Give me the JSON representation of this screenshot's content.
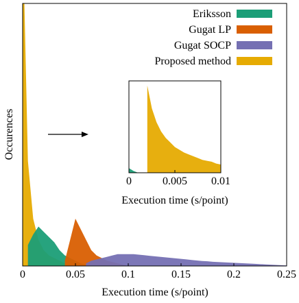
{
  "chart_data": [
    {
      "type": "area",
      "xlabel": "Execution time (s/point)",
      "ylabel": "Occurences",
      "legend": "upper right",
      "x": [
        0,
        0.005,
        0.01,
        0.015,
        0.02,
        0.025,
        0.03,
        0.035,
        0.04,
        0.045,
        0.05,
        0.055,
        0.06,
        0.065,
        0.07,
        0.075,
        0.08,
        0.085,
        0.09,
        0.095,
        0.1,
        0.105,
        0.11,
        0.115,
        0.12,
        0.125,
        0.13,
        0.135,
        0.14,
        0.145,
        0.15,
        0.155,
        0.16,
        0.165,
        0.17,
        0.175,
        0.18,
        0.185,
        0.19,
        0.195,
        0.2,
        0.205,
        0.21,
        0.215,
        0.22,
        0.225,
        0.23,
        0.235,
        0.24,
        0.245,
        0.25
      ],
      "xlim": [
        0,
        0.25
      ],
      "xticks": [
        0,
        0.05,
        0.1,
        0.15,
        0.2,
        0.25
      ],
      "ylim": [
        0,
        100
      ],
      "series": [
        {
          "name": "Proposed method",
          "color": "#e6ab02",
          "values": [
            130,
            40,
            18,
            10,
            6,
            4,
            3,
            2,
            1,
            0.5,
            0,
            null,
            null,
            null,
            null,
            null,
            null,
            null,
            null,
            null,
            null,
            null,
            null,
            null,
            null,
            null,
            null,
            null,
            null,
            null,
            null,
            null,
            null,
            null,
            null,
            null,
            null,
            null,
            null,
            null,
            null,
            null,
            null,
            null,
            null,
            null,
            null,
            null,
            null,
            null,
            null
          ]
        },
        {
          "name": "Eriksson",
          "color": "#1b9e77",
          "values": [
            null,
            8,
            12,
            15,
            13,
            11,
            9,
            6,
            4,
            3,
            2,
            1,
            0.5,
            0,
            null,
            null,
            null,
            null,
            null,
            null,
            null,
            null,
            null,
            null,
            null,
            null,
            null,
            null,
            null,
            null,
            null,
            null,
            null,
            null,
            null,
            null,
            null,
            null,
            null,
            null,
            null,
            null,
            null,
            null,
            null,
            null,
            null,
            null,
            null,
            null,
            null
          ]
        },
        {
          "name": "Gugat LP",
          "color": "#d95f02",
          "values": [
            null,
            null,
            null,
            null,
            null,
            null,
            null,
            null,
            2,
            10,
            18,
            14,
            10,
            6,
            4,
            3,
            2,
            1.5,
            1,
            0.5,
            0,
            null,
            null,
            null,
            null,
            null,
            null,
            null,
            null,
            null,
            null,
            null,
            null,
            null,
            null,
            null,
            null,
            null,
            null,
            null,
            null,
            null,
            null,
            null,
            null,
            null,
            null,
            null,
            null,
            null,
            null
          ]
        },
        {
          "name": "Gugat SOCP",
          "color": "#7570b3",
          "values": [
            null,
            null,
            null,
            null,
            null,
            null,
            null,
            null,
            null,
            null,
            null,
            null,
            1,
            2,
            2.5,
            3,
            3.5,
            4,
            4.5,
            4.5,
            4.5,
            4.5,
            4.3,
            4.1,
            3.9,
            3.7,
            3.5,
            3.3,
            3.1,
            2.9,
            2.7,
            2.5,
            2.3,
            2.1,
            1.9,
            1.8,
            1.6,
            1.5,
            1.4,
            1.3,
            1.2,
            1.1,
            1,
            0.9,
            0.8,
            0.7,
            0.6,
            0.5,
            0.4,
            0.3,
            0.2
          ]
        }
      ]
    },
    {
      "type": "area",
      "xlabel": "Execution time (s/point)",
      "x": [
        0,
        0.0005,
        0.001,
        0.0015,
        0.002,
        0.0025,
        0.003,
        0.0035,
        0.004,
        0.0045,
        0.005,
        0.0055,
        0.006,
        0.0065,
        0.007,
        0.0075,
        0.008,
        0.0085,
        0.009,
        0.0095,
        0.01
      ],
      "xlim": [
        0,
        0.01
      ],
      "xticks": [
        0,
        0.005,
        0.01
      ],
      "ylim": [
        0,
        100
      ],
      "series": [
        {
          "color": "#e6ab02",
          "values": [
            null,
            null,
            null,
            null,
            95,
            70,
            55,
            45,
            38,
            33,
            28,
            25,
            22,
            20,
            18,
            16,
            14,
            13,
            12,
            10,
            9
          ]
        },
        {
          "color": "#1b9e77",
          "values": [
            5,
            2,
            0,
            null,
            null,
            null,
            null,
            null,
            null,
            null,
            null,
            null,
            null,
            null,
            null,
            null,
            null,
            null,
            null,
            null,
            null
          ]
        }
      ]
    }
  ]
}
